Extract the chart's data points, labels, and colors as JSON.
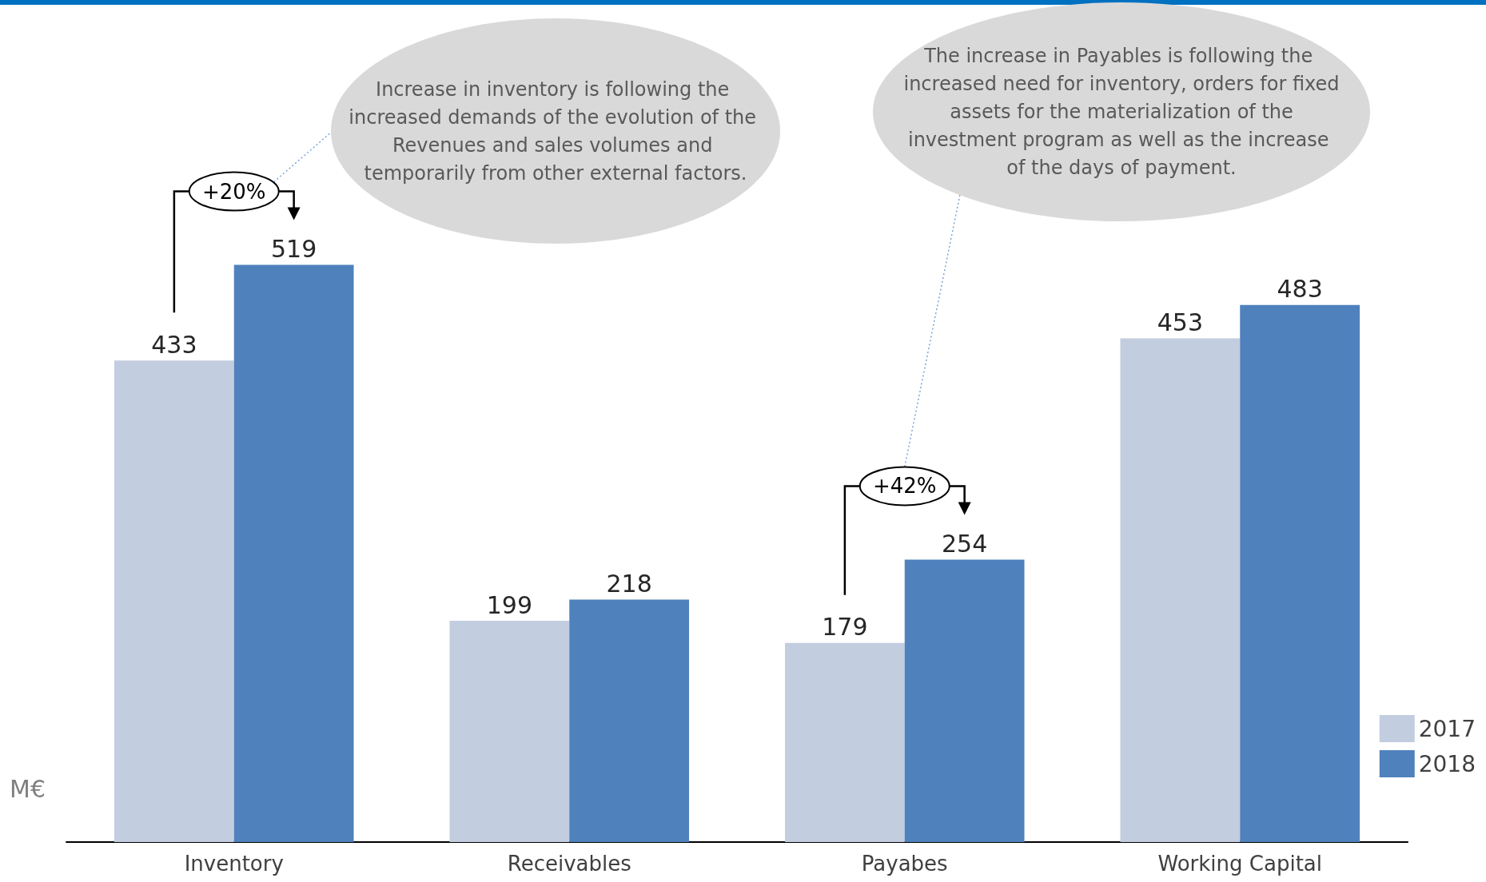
{
  "chart_data": {
    "type": "bar",
    "ylabel": "M€",
    "categories": [
      "Inventory",
      "Receivables",
      "Payabes",
      "Working Capital"
    ],
    "series": [
      {
        "name": "2017",
        "color": "#c3cde0",
        "values": [
          433,
          199,
          179,
          453
        ]
      },
      {
        "name": "2018",
        "color": "#4f81bd",
        "values": [
          519,
          218,
          254,
          483
        ]
      }
    ],
    "data_labels": true,
    "legend": "bottom right",
    "annotations": [
      "Increase in inventory is following the increased demands of the evolution of the Revenues and sales volumes and temporarily from other external factors.",
      "+20%",
      "The increase in Payables is following the increased need for inventory, orders for fixed assets for the materialization of the investment program as well as the increase of the days of payment.",
      "+42%"
    ]
  }
}
